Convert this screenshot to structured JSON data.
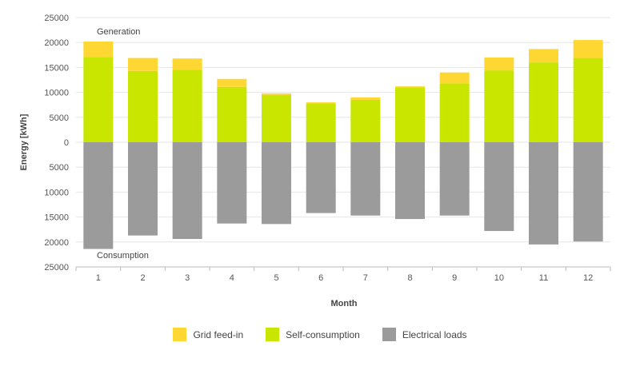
{
  "chart_data": {
    "type": "bar",
    "stacked": true,
    "categories": [
      "1",
      "2",
      "3",
      "4",
      "5",
      "6",
      "7",
      "8",
      "9",
      "10",
      "11",
      "12"
    ],
    "xlabel": "Month",
    "ylabel": "Energy [kWh]",
    "ylim": [
      -25000,
      25000
    ],
    "yticks": [
      25000,
      20000,
      15000,
      10000,
      5000,
      0,
      -5000,
      -10000,
      -15000,
      -20000,
      -25000
    ],
    "ytick_labels": [
      "25000",
      "20000",
      "15000",
      "10000",
      "5000",
      "0",
      "5000",
      "10000",
      "15000",
      "20000",
      "25000"
    ],
    "grid": true,
    "annotations": {
      "top": "Generation",
      "bottom": "Consumption"
    },
    "series": [
      {
        "name": "Self-consumption",
        "color": "#c8e600",
        "values": [
          17100,
          14300,
          14500,
          11100,
          9500,
          7800,
          8500,
          11000,
          11800,
          14400,
          16000,
          16900
        ]
      },
      {
        "name": "Grid feed-in",
        "color": "#ffd733",
        "values": [
          3100,
          2600,
          2300,
          1600,
          300,
          200,
          500,
          200,
          2200,
          2600,
          2700,
          3600
        ]
      },
      {
        "name": "Electrical loads",
        "color": "#9b9b9b",
        "values": [
          -21400,
          -18700,
          -19400,
          -16300,
          -16400,
          -14200,
          -14700,
          -15400,
          -14700,
          -17800,
          -20500,
          -19900
        ]
      }
    ],
    "legend": {
      "position": "bottom",
      "items": [
        {
          "label": "Grid feed-in",
          "color": "#ffd733"
        },
        {
          "label": "Self-consumption",
          "color": "#c8e600"
        },
        {
          "label": "Electrical loads",
          "color": "#9b9b9b"
        }
      ]
    }
  }
}
